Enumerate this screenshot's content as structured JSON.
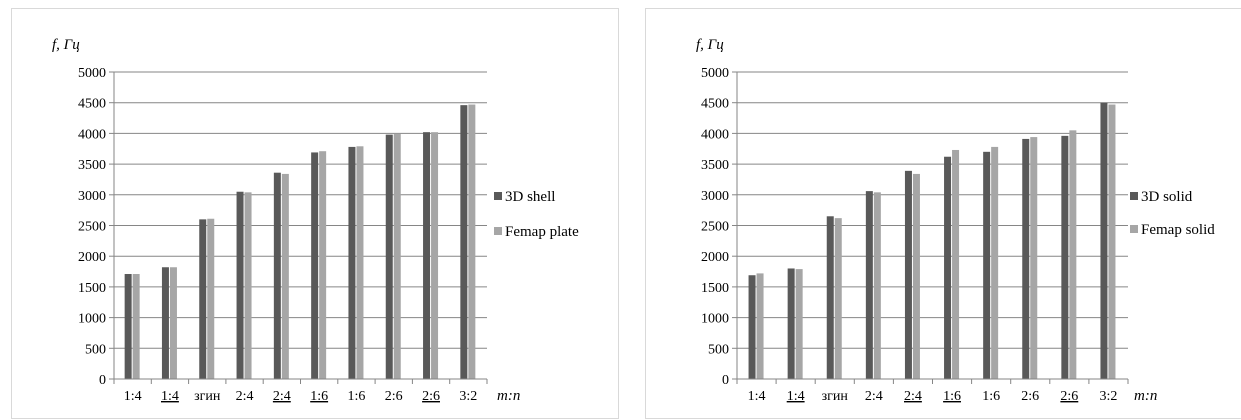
{
  "colors": {
    "series1": "#595959",
    "series2": "#a6a6a6",
    "grid": "#868686"
  },
  "chart_data": [
    {
      "type": "bar",
      "ylabel": "f, Гц",
      "xlabel": "m:n",
      "ylim": [
        0,
        5000
      ],
      "yticks": [
        "0",
        "500",
        "1000",
        "1500",
        "2000",
        "2500",
        "3000",
        "3500",
        "4000",
        "4500",
        "5000"
      ],
      "categories": [
        "1:4",
        "1:4",
        "згин",
        "2:4",
        "2:4",
        "1:6",
        "1:6",
        "2:6",
        "2:6",
        "3:2"
      ],
      "underlined": [
        false,
        true,
        false,
        false,
        true,
        true,
        false,
        false,
        true,
        false
      ],
      "legend_position": "right",
      "grid": true,
      "series": [
        {
          "name": "3D shell",
          "values": [
            1710,
            1820,
            2600,
            3050,
            3360,
            3690,
            3780,
            3980,
            4020,
            4460
          ]
        },
        {
          "name": "Femap plate",
          "values": [
            1710,
            1820,
            2610,
            3040,
            3340,
            3710,
            3790,
            3990,
            4020,
            4470
          ]
        }
      ]
    },
    {
      "type": "bar",
      "ylabel": "f, Гц",
      "xlabel": "m:n",
      "ylim": [
        0,
        5000
      ],
      "yticks": [
        "0",
        "500",
        "1000",
        "1500",
        "2000",
        "2500",
        "3000",
        "3500",
        "4000",
        "4500",
        "5000"
      ],
      "categories": [
        "1:4",
        "1:4",
        "згин",
        "2:4",
        "2:4",
        "1:6",
        "1:6",
        "2:6",
        "2:6",
        "3:2"
      ],
      "underlined": [
        false,
        true,
        false,
        false,
        true,
        true,
        false,
        false,
        true,
        false
      ],
      "legend_position": "right",
      "grid": true,
      "series": [
        {
          "name": "3D solid",
          "values": [
            1690,
            1800,
            2650,
            3060,
            3390,
            3620,
            3700,
            3910,
            3960,
            4500
          ]
        },
        {
          "name": "Femap solid",
          "values": [
            1720,
            1790,
            2620,
            3040,
            3340,
            3730,
            3780,
            3940,
            4050,
            4470
          ]
        }
      ]
    }
  ]
}
